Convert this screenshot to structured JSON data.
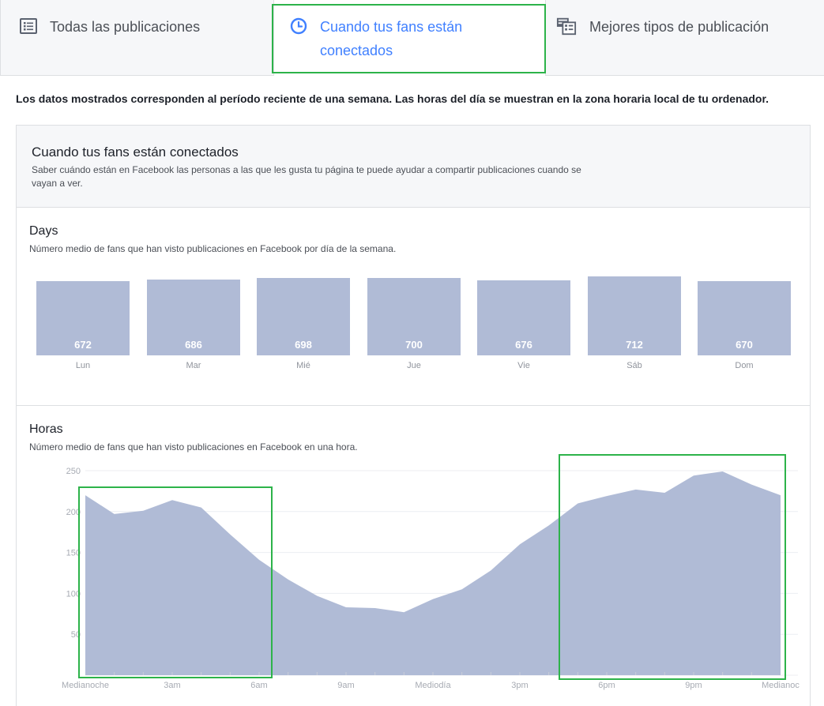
{
  "tabs": [
    {
      "id": "all",
      "label": "Todas las publicaciones",
      "icon": "list-icon"
    },
    {
      "id": "when",
      "label": "Cuando tus fans están conectados",
      "icon": "clock-icon",
      "active": true
    },
    {
      "id": "best",
      "label": "Mejores tipos de publicación",
      "icon": "post-types-icon"
    }
  ],
  "note": "Los datos mostrados corresponden al período reciente de una semana. Las horas del día se muestran en la zona horaria local de tu ordenador.",
  "card": {
    "title": "Cuando tus fans están conectados",
    "description": "Saber cuándo están en Facebook las personas a las que les gusta tu página te puede ayudar a compartir publicaciones cuando se vayan a ver."
  },
  "days_section": {
    "title": "Days",
    "description": "Número medio de fans que han visto publicaciones en Facebook por día de la semana."
  },
  "hours_section": {
    "title": "Horas",
    "description": "Número medio de fans que han visto publicaciones en Facebook en una hora."
  },
  "colors": {
    "accent": "#4080ff",
    "bar": "#b0bbd6",
    "highlight": "#2db34a"
  },
  "chart_data": [
    {
      "type": "bar",
      "categories": [
        "Lun",
        "Mar",
        "Mié",
        "Jue",
        "Vie",
        "Sáb",
        "Dom"
      ],
      "values": [
        672,
        686,
        698,
        700,
        676,
        712,
        670
      ]
    },
    {
      "type": "area",
      "x": [
        0,
        1,
        2,
        3,
        4,
        5,
        6,
        7,
        8,
        9,
        10,
        11,
        12,
        13,
        14,
        15,
        16,
        17,
        18,
        19,
        20,
        21,
        22,
        23,
        24
      ],
      "values": [
        220,
        197,
        201,
        214,
        205,
        172,
        141,
        117,
        97,
        83,
        82,
        77,
        93,
        105,
        128,
        160,
        183,
        210,
        219,
        227,
        223,
        244,
        249,
        233,
        220
      ],
      "y_ticks": [
        0,
        50,
        100,
        150,
        200,
        250
      ],
      "y_tick_labels": [
        "",
        "50",
        "100",
        "150",
        "200",
        "250"
      ],
      "ylim": [
        0,
        250
      ],
      "x_tick_labels": [
        {
          "x": 0,
          "label": "Medianoche"
        },
        {
          "x": 3,
          "label": "3am"
        },
        {
          "x": 6,
          "label": "6am"
        },
        {
          "x": 9,
          "label": "9am"
        },
        {
          "x": 12,
          "label": "Mediodía"
        },
        {
          "x": 15,
          "label": "3pm"
        },
        {
          "x": 18,
          "label": "6pm"
        },
        {
          "x": 21,
          "label": "9pm"
        },
        {
          "x": 24,
          "label": "Medianoc"
        }
      ]
    }
  ]
}
